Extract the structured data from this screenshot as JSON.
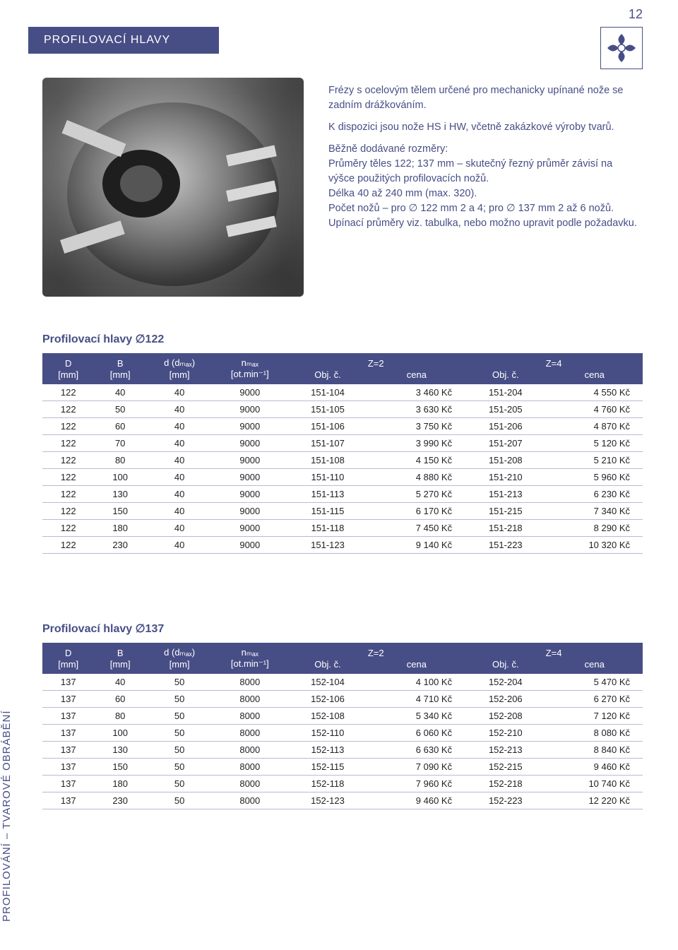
{
  "page_number": "12",
  "header_title": "PROFILOVACÍ HLAVY",
  "side_label": "PROFILOVÁNÍ – TVAROVÉ OBRÁBĚNÍ",
  "colors": {
    "brand": "#474e86",
    "row_border": "#b8bbd0",
    "background": "#ffffff",
    "text": "#222222"
  },
  "description": {
    "p1": "Frézy s ocelovým tělem určené pro mechanicky upínané nože se zadním drážkováním.",
    "p2": "K dispozici jsou nože HS i HW, včetně zakázkové výroby tvarů.",
    "p3a": "Běžně dodávané rozměry:",
    "p3b": "Průměry těles 122; 137 mm – skutečný řezný průměr závisí na výšce použitých profilovacích nožů.",
    "p3c": "Délka 40 až 240 mm (max. 320).",
    "p3d": "Počet nožů – pro ∅ 122 mm 2 a 4; pro ∅ 137 mm 2 až 6 nožů.",
    "p3e": "Upínací průměry viz. tabulka, nebo možno upravit podle požadavku."
  },
  "table_headers": {
    "D": "D",
    "D_unit": "[mm]",
    "B": "B",
    "B_unit": "[mm]",
    "d": "d (dₘₐₓ)",
    "d_unit": "[mm]",
    "n": "nₘₐₓ",
    "n_unit": "[ot.min⁻¹]",
    "Z2": "Z=2",
    "Z4": "Z=4",
    "obj": "Obj. č.",
    "cena": "cena"
  },
  "table1": {
    "title": "Profilovací hlavy ∅122",
    "rows": [
      {
        "D": "122",
        "B": "40",
        "d": "40",
        "n": "9000",
        "c2": "151-104",
        "p2": "3 460 Kč",
        "c4": "151-204",
        "p4": "4 550 Kč"
      },
      {
        "D": "122",
        "B": "50",
        "d": "40",
        "n": "9000",
        "c2": "151-105",
        "p2": "3 630 Kč",
        "c4": "151-205",
        "p4": "4 760 Kč"
      },
      {
        "D": "122",
        "B": "60",
        "d": "40",
        "n": "9000",
        "c2": "151-106",
        "p2": "3 750 Kč",
        "c4": "151-206",
        "p4": "4 870 Kč"
      },
      {
        "D": "122",
        "B": "70",
        "d": "40",
        "n": "9000",
        "c2": "151-107",
        "p2": "3 990 Kč",
        "c4": "151-207",
        "p4": "5 120 Kč"
      },
      {
        "D": "122",
        "B": "80",
        "d": "40",
        "n": "9000",
        "c2": "151-108",
        "p2": "4 150 Kč",
        "c4": "151-208",
        "p4": "5 210 Kč"
      },
      {
        "D": "122",
        "B": "100",
        "d": "40",
        "n": "9000",
        "c2": "151-110",
        "p2": "4 880 Kč",
        "c4": "151-210",
        "p4": "5 960 Kč"
      },
      {
        "D": "122",
        "B": "130",
        "d": "40",
        "n": "9000",
        "c2": "151-113",
        "p2": "5 270 Kč",
        "c4": "151-213",
        "p4": "6 230 Kč"
      },
      {
        "D": "122",
        "B": "150",
        "d": "40",
        "n": "9000",
        "c2": "151-115",
        "p2": "6 170 Kč",
        "c4": "151-215",
        "p4": "7 340 Kč"
      },
      {
        "D": "122",
        "B": "180",
        "d": "40",
        "n": "9000",
        "c2": "151-118",
        "p2": "7 450 Kč",
        "c4": "151-218",
        "p4": "8 290 Kč"
      },
      {
        "D": "122",
        "B": "230",
        "d": "40",
        "n": "9000",
        "c2": "151-123",
        "p2": "9 140 Kč",
        "c4": "151-223",
        "p4": "10 320 Kč"
      }
    ]
  },
  "table2": {
    "title": "Profilovací hlavy ∅137",
    "rows": [
      {
        "D": "137",
        "B": "40",
        "d": "50",
        "n": "8000",
        "c2": "152-104",
        "p2": "4 100 Kč",
        "c4": "152-204",
        "p4": "5 470 Kč"
      },
      {
        "D": "137",
        "B": "60",
        "d": "50",
        "n": "8000",
        "c2": "152-106",
        "p2": "4 710 Kč",
        "c4": "152-206",
        "p4": "6 270 Kč"
      },
      {
        "D": "137",
        "B": "80",
        "d": "50",
        "n": "8000",
        "c2": "152-108",
        "p2": "5 340 Kč",
        "c4": "152-208",
        "p4": "7 120 Kč"
      },
      {
        "D": "137",
        "B": "100",
        "d": "50",
        "n": "8000",
        "c2": "152-110",
        "p2": "6 060 Kč",
        "c4": "152-210",
        "p4": "8 080 Kč"
      },
      {
        "D": "137",
        "B": "130",
        "d": "50",
        "n": "8000",
        "c2": "152-113",
        "p2": "6 630 Kč",
        "c4": "152-213",
        "p4": "8 840 Kč"
      },
      {
        "D": "137",
        "B": "150",
        "d": "50",
        "n": "8000",
        "c2": "152-115",
        "p2": "7 090 Kč",
        "c4": "152-215",
        "p4": "9 460 Kč"
      },
      {
        "D": "137",
        "B": "180",
        "d": "50",
        "n": "8000",
        "c2": "152-118",
        "p2": "7 960 Kč",
        "c4": "152-218",
        "p4": "10 740 Kč"
      },
      {
        "D": "137",
        "B": "230",
        "d": "50",
        "n": "8000",
        "c2": "152-123",
        "p2": "9 460 Kč",
        "c4": "152-223",
        "p4": "12 220 Kč"
      }
    ]
  }
}
